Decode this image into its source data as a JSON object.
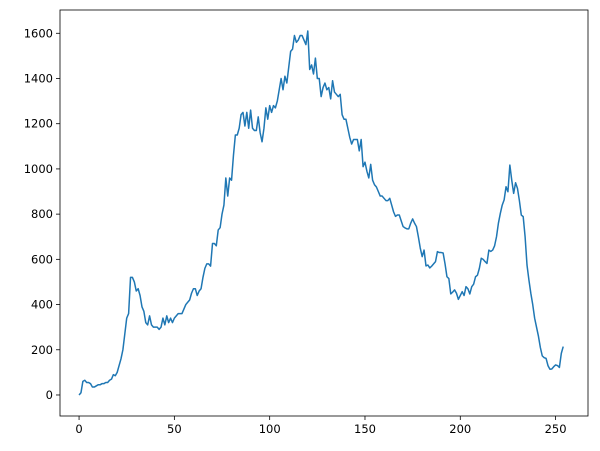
{
  "chart_data": {
    "type": "line",
    "title": "",
    "xlabel": "",
    "ylabel": "",
    "xlim": [
      -10,
      267
    ],
    "ylim": [
      -93,
      1703
    ],
    "grid": false,
    "color": "#1f77b4",
    "xticks": [
      0,
      50,
      100,
      150,
      200,
      250
    ],
    "yticks": [
      0,
      200,
      400,
      600,
      800,
      1000,
      1200,
      1400,
      1600
    ],
    "series": [
      {
        "values": [
          0,
          10,
          60,
          65,
          55,
          55,
          50,
          35,
          35,
          40,
          45,
          45,
          50,
          50,
          55,
          55,
          65,
          70,
          90,
          85,
          100,
          130,
          160,
          200,
          270,
          340,
          360,
          520,
          520,
          500,
          460,
          470,
          440,
          390,
          370,
          320,
          310,
          350,
          310,
          300,
          300,
          300,
          290,
          300,
          340,
          310,
          350,
          320,
          340,
          320,
          340,
          350,
          360,
          360,
          360,
          380,
          400,
          410,
          420,
          450,
          470,
          470,
          440,
          460,
          470,
          520,
          560,
          580,
          580,
          570,
          670,
          670,
          660,
          730,
          740,
          800,
          840,
          960,
          880,
          960,
          950,
          1060,
          1150,
          1150,
          1180,
          1240,
          1250,
          1190,
          1250,
          1180,
          1260,
          1180,
          1170,
          1170,
          1230,
          1160,
          1120,
          1180,
          1270,
          1220,
          1280,
          1250,
          1280,
          1270,
          1300,
          1350,
          1400,
          1350,
          1410,
          1380,
          1450,
          1520,
          1530,
          1590,
          1560,
          1570,
          1590,
          1590,
          1570,
          1550,
          1610,
          1440,
          1460,
          1420,
          1490,
          1400,
          1400,
          1320,
          1360,
          1380,
          1350,
          1360,
          1310,
          1390,
          1340,
          1330,
          1320,
          1330,
          1240,
          1220,
          1220,
          1180,
          1140,
          1110,
          1130,
          1130,
          1130,
          1080,
          1130,
          1010,
          1030,
          990,
          960,
          1020,
          950,
          930,
          920,
          900,
          880,
          880,
          870,
          860,
          860,
          870,
          840,
          810,
          790,
          796,
          796,
          770,
          745,
          739,
          735,
          735,
          760,
          779,
          760,
          745,
          700,
          650,
          612,
          641,
          571,
          575,
          562,
          570,
          580,
          590,
          634,
          630,
          630,
          628,
          580,
          523,
          515,
          447,
          455,
          465,
          450,
          423,
          440,
          457,
          440,
          479,
          470,
          447,
          479,
          490,
          523,
          530,
          560,
          605,
          600,
          590,
          582,
          641,
          635,
          641,
          660,
          700,
          760,
          803,
          840,
          863,
          921,
          899,
          1017,
          950,
          892,
          939,
          914,
          860,
          796,
          789,
          700,
          575,
          509,
          450,
          400,
          340,
          300,
          260,
          210,
          173,
          165,
          162,
          130,
          114,
          115,
          125,
          133,
          130,
          122,
          184,
          214
        ]
      }
    ]
  }
}
